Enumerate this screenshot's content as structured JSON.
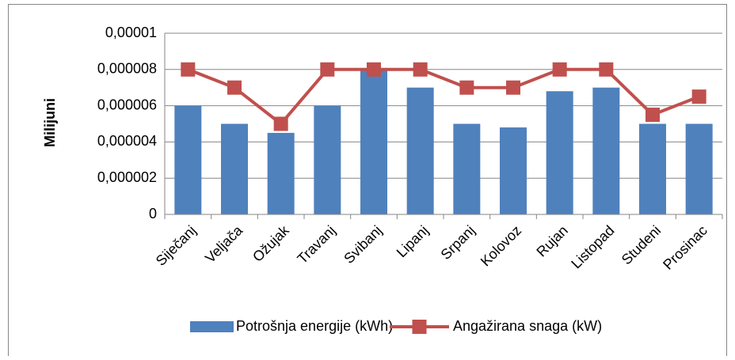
{
  "chart_data": {
    "type": "combo",
    "ylabel": "Milijuni",
    "categories": [
      "Siječanj",
      "Veljača",
      "Ožujak",
      "Travanj",
      "Svibanj",
      "Lipanj",
      "Srpanj",
      "Kolovoz",
      "Rujan",
      "Listopad",
      "Studeni",
      "Prosinac"
    ],
    "series": [
      {
        "name": "Potrošnja energije (kWh)",
        "type": "bar",
        "color": "#4f81bd",
        "values": [
          6e-06,
          5e-06,
          4.5e-06,
          6e-06,
          8e-06,
          7e-06,
          5e-06,
          4.8e-06,
          6.8e-06,
          7e-06,
          5e-06,
          5e-06
        ]
      },
      {
        "name": "Angažirana snaga (kW)",
        "type": "line",
        "color": "#c0504d",
        "values": [
          8e-06,
          7e-06,
          5e-06,
          8e-06,
          8e-06,
          8e-06,
          7e-06,
          7e-06,
          8e-06,
          8e-06,
          5.5e-06,
          6.5e-06
        ]
      }
    ],
    "ylim": [
      0,
      1e-05
    ],
    "yticks": [
      0,
      {
        "value": 2e-06,
        "label": "0,000002"
      },
      {
        "value": 4e-06,
        "label": "0,000004"
      },
      {
        "value": 6e-06,
        "label": "0,000006"
      },
      {
        "value": 8e-06,
        "label": "0,000008"
      },
      {
        "value": 1e-05,
        "label": "0,00001"
      }
    ],
    "grid": true,
    "legend": "bottom"
  }
}
